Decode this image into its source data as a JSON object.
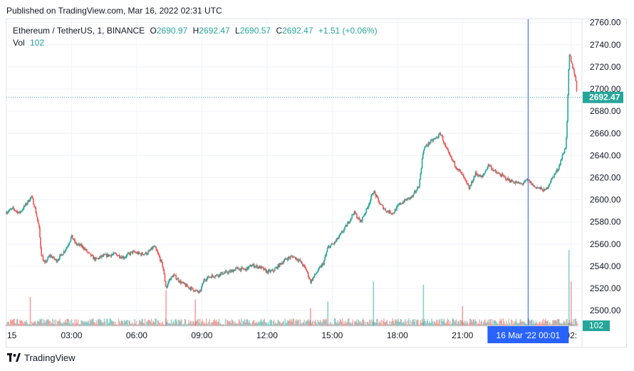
{
  "header": {
    "published": "Published on TradingView.com, Mar 16, 2022 02:31 UTC"
  },
  "legend": {
    "symbol": "Ethereum / TetherUS, 1, BINANCE",
    "o_label": "O",
    "o_value": "2690.97",
    "h_label": "H",
    "h_value": "2692.47",
    "l_label": "L",
    "l_value": "2690.57",
    "c_label": "C",
    "c_value": "2692.47",
    "change": "+1.51 (+0.06%)",
    "vol_label": "Vol",
    "vol_value": "102"
  },
  "footer": {
    "brand": "TradingView"
  },
  "colors": {
    "up": "#26a69a",
    "down": "#ef5350",
    "crosshair": "#2962ff",
    "grid": "#f0f3fa",
    "axis_text": "#131722"
  },
  "chart_data": {
    "type": "candlestick",
    "symbol": "ETHUSDT",
    "interval": "1",
    "price_axis_ticks": [
      2500,
      2520,
      2540,
      2560,
      2580,
      2600,
      2620,
      2640,
      2660,
      2680,
      2700,
      2720,
      2740,
      2760
    ],
    "ylim": [
      2486,
      2763
    ],
    "time_axis_ticks": [
      "15",
      "03:00",
      "06:00",
      "09:00",
      "12:00",
      "15:00",
      "18:00",
      "21:00",
      "16 Mar '22",
      "02:"
    ],
    "time_axis_ticks_hours": [
      0,
      3,
      6,
      9,
      12,
      15,
      18,
      21,
      24,
      26
    ],
    "xlim_hours": [
      0,
      26.5
    ],
    "last_price": "2692.47",
    "last_volume": "102",
    "crosshair_label": "16 Mar '22   00:01",
    "crosshair_hour": 24.02,
    "grid": true,
    "close_path": [
      [
        0,
        2589
      ],
      [
        0.3,
        2592
      ],
      [
        0.6,
        2588
      ],
      [
        0.9,
        2596
      ],
      [
        1.15,
        2603
      ],
      [
        1.3,
        2594
      ],
      [
        1.5,
        2575
      ],
      [
        1.6,
        2552
      ],
      [
        1.75,
        2542
      ],
      [
        2.0,
        2550
      ],
      [
        2.3,
        2545
      ],
      [
        2.6,
        2552
      ],
      [
        2.8,
        2558
      ],
      [
        3.0,
        2567
      ],
      [
        3.2,
        2560
      ],
      [
        3.5,
        2558
      ],
      [
        3.8,
        2551
      ],
      [
        4.1,
        2546
      ],
      [
        4.4,
        2549
      ],
      [
        4.7,
        2550
      ],
      [
        5.0,
        2551
      ],
      [
        5.4,
        2548
      ],
      [
        5.8,
        2553
      ],
      [
        6.2,
        2551
      ],
      [
        6.5,
        2552
      ],
      [
        6.8,
        2558
      ],
      [
        7.0,
        2550
      ],
      [
        7.2,
        2540
      ],
      [
        7.35,
        2520
      ],
      [
        7.5,
        2528
      ],
      [
        7.7,
        2532
      ],
      [
        8.0,
        2526
      ],
      [
        8.3,
        2522
      ],
      [
        8.6,
        2519
      ],
      [
        8.9,
        2516
      ],
      [
        9.1,
        2528
      ],
      [
        9.4,
        2531
      ],
      [
        9.7,
        2532
      ],
      [
        10.0,
        2534
      ],
      [
        10.3,
        2535
      ],
      [
        10.6,
        2538
      ],
      [
        11.0,
        2537
      ],
      [
        11.3,
        2541
      ],
      [
        11.7,
        2539
      ],
      [
        12.0,
        2535
      ],
      [
        12.3,
        2536
      ],
      [
        12.6,
        2542
      ],
      [
        12.9,
        2547
      ],
      [
        13.2,
        2549
      ],
      [
        13.5,
        2545
      ],
      [
        13.8,
        2537
      ],
      [
        14.0,
        2526
      ],
      [
        14.3,
        2535
      ],
      [
        14.6,
        2543
      ],
      [
        14.8,
        2557
      ],
      [
        15.1,
        2561
      ],
      [
        15.4,
        2569
      ],
      [
        15.7,
        2578
      ],
      [
        16.0,
        2589
      ],
      [
        16.3,
        2580
      ],
      [
        16.6,
        2592
      ],
      [
        16.9,
        2608
      ],
      [
        17.2,
        2596
      ],
      [
        17.5,
        2590
      ],
      [
        17.8,
        2588
      ],
      [
        18.1,
        2596
      ],
      [
        18.4,
        2600
      ],
      [
        18.7,
        2603
      ],
      [
        19.0,
        2613
      ],
      [
        19.2,
        2646
      ],
      [
        19.5,
        2652
      ],
      [
        19.8,
        2656
      ],
      [
        20.0,
        2660
      ],
      [
        20.2,
        2648
      ],
      [
        20.4,
        2640
      ],
      [
        20.7,
        2630
      ],
      [
        21.0,
        2622
      ],
      [
        21.3,
        2610
      ],
      [
        21.6,
        2624
      ],
      [
        21.9,
        2620
      ],
      [
        22.2,
        2632
      ],
      [
        22.5,
        2625
      ],
      [
        22.8,
        2622
      ],
      [
        23.1,
        2618
      ],
      [
        23.4,
        2616
      ],
      [
        23.7,
        2614
      ],
      [
        24.0,
        2618
      ],
      [
        24.3,
        2612
      ],
      [
        24.6,
        2610
      ],
      [
        24.8,
        2608
      ],
      [
        25.0,
        2615
      ],
      [
        25.2,
        2622
      ],
      [
        25.4,
        2628
      ],
      [
        25.6,
        2640
      ],
      [
        25.75,
        2648
      ],
      [
        25.82,
        2672
      ],
      [
        25.88,
        2715
      ],
      [
        25.93,
        2732
      ],
      [
        26.0,
        2724
      ],
      [
        26.1,
        2718
      ],
      [
        26.2,
        2710
      ],
      [
        26.28,
        2692.47
      ]
    ],
    "volume": {
      "typical": 25,
      "spikes": [
        {
          "hour": 1.1,
          "value": 130,
          "dir": "down"
        },
        {
          "hour": 7.35,
          "value": 160,
          "dir": "down"
        },
        {
          "hour": 8.7,
          "value": 120,
          "dir": "down"
        },
        {
          "hour": 14.0,
          "value": 80,
          "dir": "down"
        },
        {
          "hour": 14.8,
          "value": 110,
          "dir": "up"
        },
        {
          "hour": 16.9,
          "value": 200,
          "dir": "up"
        },
        {
          "hour": 19.2,
          "value": 185,
          "dir": "up"
        },
        {
          "hour": 21.0,
          "value": 90,
          "dir": "down"
        },
        {
          "hour": 25.9,
          "value": 340,
          "dir": "up"
        },
        {
          "hour": 26.0,
          "value": 200,
          "dir": "down"
        }
      ],
      "max": 360
    }
  }
}
